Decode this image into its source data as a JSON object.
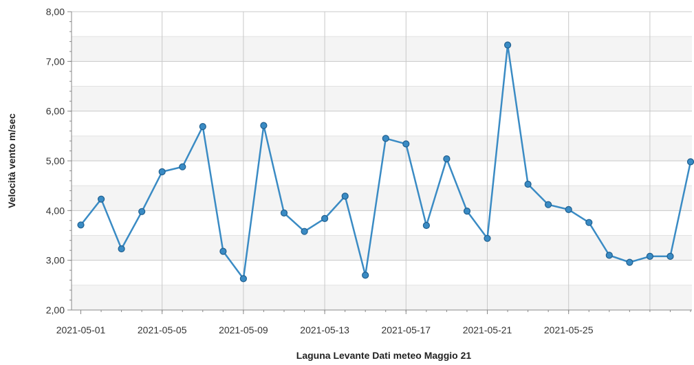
{
  "chart_data": {
    "type": "line",
    "title": "",
    "xlabel": "Laguna Levante Dati meteo Maggio 21",
    "ylabel": "Velocità vento m/sec",
    "x_tick_labels": [
      "2021-05-01",
      "2021-05-05",
      "2021-05-09",
      "2021-05-13",
      "2021-05-17",
      "2021-05-21",
      "2021-05-25"
    ],
    "y_tick_labels": [
      "2,00",
      "3,00",
      "4,00",
      "5,00",
      "6,00",
      "7,00",
      "8,00"
    ],
    "ylim": [
      2,
      8
    ],
    "xlim": [
      "2021-05-01",
      "2021-05-31"
    ],
    "grid": true,
    "x": [
      "2021-05-01",
      "2021-05-02",
      "2021-05-03",
      "2021-05-04",
      "2021-05-05",
      "2021-05-06",
      "2021-05-07",
      "2021-05-08",
      "2021-05-09",
      "2021-05-10",
      "2021-05-11",
      "2021-05-12",
      "2021-05-13",
      "2021-05-14",
      "2021-05-15",
      "2021-05-16",
      "2021-05-17",
      "2021-05-18",
      "2021-05-19",
      "2021-05-20",
      "2021-05-21",
      "2021-05-22",
      "2021-05-23",
      "2021-05-24",
      "2021-05-25",
      "2021-05-26",
      "2021-05-27",
      "2021-05-28",
      "2021-05-29",
      "2021-05-30",
      "2021-05-31"
    ],
    "series": [
      {
        "values": [
          3.71,
          4.23,
          3.23,
          3.98,
          4.78,
          4.88,
          5.69,
          3.18,
          2.63,
          5.71,
          3.95,
          3.58,
          3.84,
          4.29,
          2.7,
          5.45,
          5.34,
          3.7,
          5.04,
          3.99,
          3.44,
          7.33,
          4.53,
          4.12,
          4.02,
          3.76,
          3.1,
          2.96,
          3.08,
          3.08,
          4.98
        ],
        "color": "#3a8bc4"
      }
    ],
    "colors": {
      "line": "#3a8bc4",
      "point_fill": "#3a8bc4",
      "point_stroke": "#1f5f8f",
      "band_light": "#ffffff",
      "band_dark": "#f4f4f4",
      "grid": "#c8c8c8",
      "axis": "#888888"
    }
  }
}
